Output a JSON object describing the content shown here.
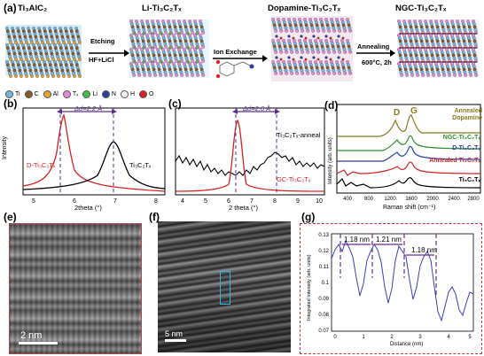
{
  "panel_a": {
    "label": "(a)",
    "stages": [
      "Ti₃AlC₂",
      "Li-Ti₃C₂Tₓ",
      "Dopamine-Ti₃C₂Tₓ",
      "NGC-Ti₃C₂Tₓ"
    ],
    "steps": [
      {
        "title": "Etching",
        "sub": "HF+LiCl"
      },
      {
        "title": "Ion Exchange",
        "sub": ""
      },
      {
        "title": "Annealing",
        "sub": "600°C, 2h"
      }
    ],
    "legend": [
      {
        "label": "Ti",
        "color": "#6fb6e6"
      },
      {
        "label": "C",
        "color": "#8a5a2b"
      },
      {
        "label": "Al",
        "color": "#e8a030"
      },
      {
        "label": "Tₓ",
        "color": "#e889d8"
      },
      {
        "label": "Li",
        "color": "#3fbf3f"
      },
      {
        "label": "N",
        "color": "#2b3f9e"
      },
      {
        "label": "H",
        "color": "#f2f2f2"
      },
      {
        "label": "O",
        "color": "#e02020"
      }
    ]
  },
  "panel_b": {
    "label": "(b)",
    "ylabel": "Intensity",
    "xlabel": "2theta (°)",
    "ticks": [
      "5",
      "6",
      "7",
      "8"
    ],
    "annotation": "Δd=2.2 Å",
    "series": [
      {
        "name": "D-Ti₃C₂Tₓ",
        "color": "#d62020"
      },
      {
        "name": "Ti₃C₂Tₓ",
        "color": "#000000"
      }
    ]
  },
  "panel_c": {
    "label": "(c)",
    "xlabel": "2 theta (°)",
    "ticks": [
      "4",
      "5",
      "6",
      "7",
      "8",
      "9",
      "10"
    ],
    "annotation": "Δd=2.6 Å",
    "series": [
      {
        "name": "Ti₃C₂Tₓ-anneal",
        "color": "#000000"
      },
      {
        "name": "GC-Ti₃C₂Tₓ",
        "color": "#d62020"
      }
    ]
  },
  "panel_d": {
    "label": "(d)",
    "ylabel": "Intensity (arb. units)",
    "xlabel": "Raman shift (cm⁻¹)",
    "ticks": [
      "400",
      "800",
      "1200",
      "1600",
      "2000",
      "2400",
      "2800"
    ],
    "peak_d": "D",
    "peak_g": "G",
    "series": [
      {
        "name": "Annealed Dopamine",
        "color": "#8b7a1e"
      },
      {
        "name": "NGC-Ti₃C₂Tₓ",
        "color": "#2e8b2e"
      },
      {
        "name": "D-Ti₃C₂Tₓ",
        "color": "#2a3fa8"
      },
      {
        "name": "Annealed Ti₃C₂Tₓ",
        "color": "#d62020"
      },
      {
        "name": "Ti₃C₂Tₓ",
        "color": "#000000"
      }
    ]
  },
  "panel_e": {
    "label": "(e)",
    "scale": "2 nm"
  },
  "panel_f": {
    "label": "(f)",
    "scale": "5 nm"
  },
  "panel_g": {
    "label": "(g)",
    "ylabel": "Integrated Intensity (arb. units)",
    "xlabel": "Distance (nm)",
    "yticks": [
      "0.07",
      "0.08",
      "0.09",
      "0.1",
      "0.11",
      "0.12",
      "0.13"
    ],
    "xticks": [
      "0",
      "1",
      "2",
      "3",
      "4",
      "5"
    ],
    "spacings": [
      "1.18 nm",
      "1.21 nm",
      "1.18 nm"
    ]
  }
}
